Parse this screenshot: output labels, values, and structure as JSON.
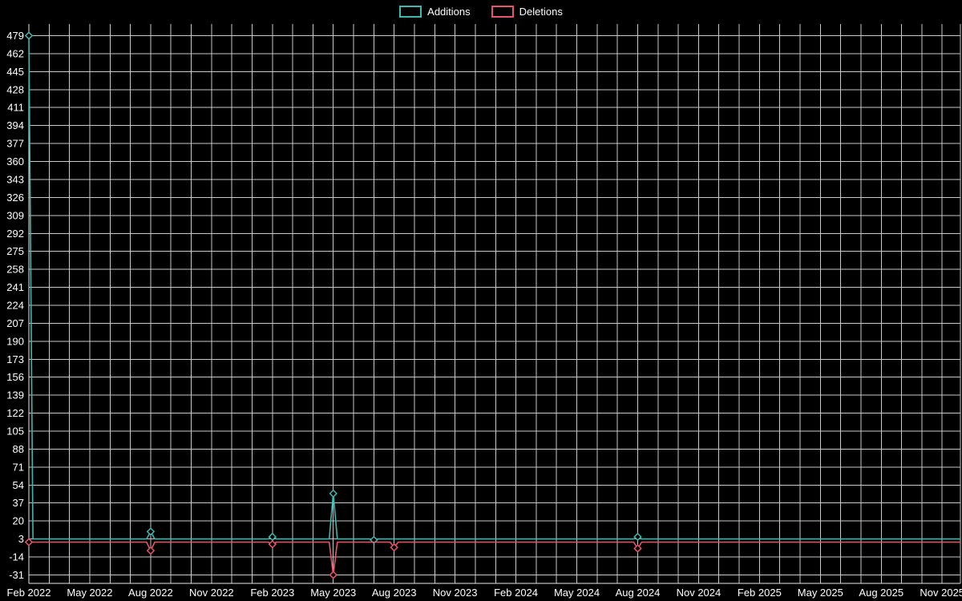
{
  "chart_data": {
    "type": "line",
    "title": "",
    "legend_position": "top-center",
    "background_color": "#000000",
    "grid_color": "#c9c9c9",
    "text_color": "#ffffff",
    "grid": true,
    "x_axis": {
      "unit": "month",
      "range_start": "Feb 2022",
      "range_end": "Nov 2025",
      "ticks": [
        {
          "label": "Feb 2022",
          "month": 0
        },
        {
          "label": "May 2022",
          "month": 3
        },
        {
          "label": "Aug 2022",
          "month": 6
        },
        {
          "label": "Nov 2022",
          "month": 9
        },
        {
          "label": "Feb 2023",
          "month": 12
        },
        {
          "label": "May 2023",
          "month": 15
        },
        {
          "label": "Aug 2023",
          "month": 18
        },
        {
          "label": "Nov 2023",
          "month": 21
        },
        {
          "label": "Feb 2024",
          "month": 24
        },
        {
          "label": "May 2024",
          "month": 27
        },
        {
          "label": "Aug 2024",
          "month": 30
        },
        {
          "label": "Nov 2024",
          "month": 33
        },
        {
          "label": "Feb 2025",
          "month": 36
        },
        {
          "label": "May 2025",
          "month": 39
        },
        {
          "label": "Aug 2025",
          "month": 42
        },
        {
          "label": "Nov 2025",
          "month": 45
        }
      ]
    },
    "y_axis": {
      "min": -39,
      "max": 490,
      "tick_step": 17,
      "ticks": [
        -31,
        -14,
        3,
        20,
        37,
        54,
        71,
        88,
        105,
        122,
        139,
        156,
        173,
        190,
        207,
        224,
        241,
        258,
        275,
        292,
        309,
        326,
        343,
        360,
        377,
        394,
        411,
        428,
        445,
        462,
        479
      ]
    },
    "series": [
      {
        "name": "Additions",
        "color": "#3fb6ae",
        "baseline": 3,
        "events": [
          {
            "date": "Feb 2022",
            "month": 0,
            "value": 479
          },
          {
            "date": "Aug 2022",
            "month": 6,
            "value": 10
          },
          {
            "date": "Feb 2023",
            "month": 12,
            "value": 5
          },
          {
            "date": "May 2023",
            "month": 15,
            "value": 46
          },
          {
            "date": "Jul 2023",
            "month": 17,
            "value": 2
          },
          {
            "date": "Aug 2024",
            "month": 30,
            "value": 5
          }
        ]
      },
      {
        "name": "Deletions",
        "color": "#e4566b",
        "baseline": 0,
        "events": [
          {
            "date": "Feb 2022",
            "month": 0,
            "value": 0
          },
          {
            "date": "Aug 2022",
            "month": 6,
            "value": -8
          },
          {
            "date": "Feb 2023",
            "month": 12,
            "value": -2
          },
          {
            "date": "May 2023",
            "month": 15,
            "value": -31
          },
          {
            "date": "Aug 2023",
            "month": 18,
            "value": -5
          },
          {
            "date": "Aug 2024",
            "month": 30,
            "value": -6
          }
        ]
      }
    ]
  }
}
